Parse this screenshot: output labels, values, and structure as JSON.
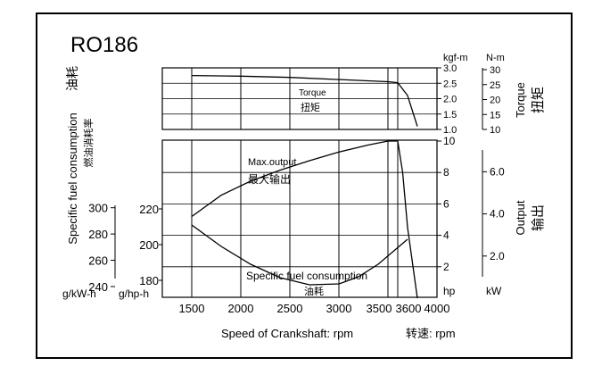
{
  "title": "RO186",
  "x_axis": {
    "ticks": [
      "1500",
      "2000",
      "2500",
      "3000",
      "3500",
      "3600",
      "4000"
    ],
    "label_en": "Speed of Crankshaft: rpm",
    "label_cn": "转速: rpm"
  },
  "torque_panel": {
    "unit_kgfm": "kgf-m",
    "unit_nm": "N-m",
    "kgfm_ticks": [
      "3.0",
      "2.5",
      "2.0",
      "1.5",
      "1.0"
    ],
    "nm_ticks": [
      "30",
      "25",
      "20",
      "15",
      "10"
    ],
    "side_label_en": "Torque",
    "side_label_cn": "扭矩",
    "curve_label_en": "Torque",
    "curve_label_cn": "扭矩"
  },
  "power_panel": {
    "hp_ticks": [
      "10",
      "8",
      "6",
      "4",
      "2"
    ],
    "hp_unit": "hp",
    "kw_ticks": [
      "6.0",
      "4.0",
      "2.0"
    ],
    "kw_unit": "kW",
    "side_label_en": "Output",
    "side_label_cn": "输出",
    "max_label_en": "Max.output",
    "max_label_cn": "最大输出",
    "sfc_label_en": "Specific fuel consumption",
    "sfc_label_cn": "油耗"
  },
  "sfc_axis": {
    "gkwh_ticks": [
      "300",
      "280",
      "260",
      "240"
    ],
    "gkwh_unit": "g/kW-h",
    "ghph_ticks": [
      "220",
      "200",
      "180"
    ],
    "ghph_unit": "g/hp-h",
    "side_label_en": "Specific fuel consumption",
    "side_label_cn": "油耗",
    "side_label_cn2": "燃油消耗率"
  },
  "chart_data": {
    "type": "line",
    "title": "RO186",
    "xlabel": "Speed of Crankshaft: rpm",
    "xlim": [
      1200,
      4000
    ],
    "series": [
      {
        "name": "Torque",
        "axis": "kgf-m",
        "ylim": [
          1.0,
          3.0
        ],
        "x": [
          1500,
          2000,
          2500,
          3000,
          3500,
          3600,
          3700,
          3800
        ],
        "y": [
          2.75,
          2.73,
          2.69,
          2.62,
          2.55,
          2.52,
          2.1,
          1.1
        ]
      },
      {
        "name": "Max.output",
        "axis": "hp",
        "ylim": [
          0,
          10
        ],
        "x": [
          1500,
          1800,
          2100,
          2400,
          2700,
          3000,
          3300,
          3500,
          3600,
          3650,
          3700,
          3800
        ],
        "y": [
          5.2,
          6.55,
          7.45,
          8.15,
          8.75,
          9.3,
          9.75,
          10.0,
          10.0,
          8.0,
          4.5,
          0.0
        ]
      },
      {
        "name": "Specific fuel consumption",
        "axis": "g/hp-h",
        "ylim": [
          170,
          230
        ],
        "x": [
          1500,
          1800,
          2100,
          2400,
          2700,
          3000,
          3200,
          3400,
          3700
        ],
        "y": [
          211,
          199,
          189,
          181.5,
          177.5,
          178,
          182,
          189,
          203
        ]
      }
    ]
  }
}
